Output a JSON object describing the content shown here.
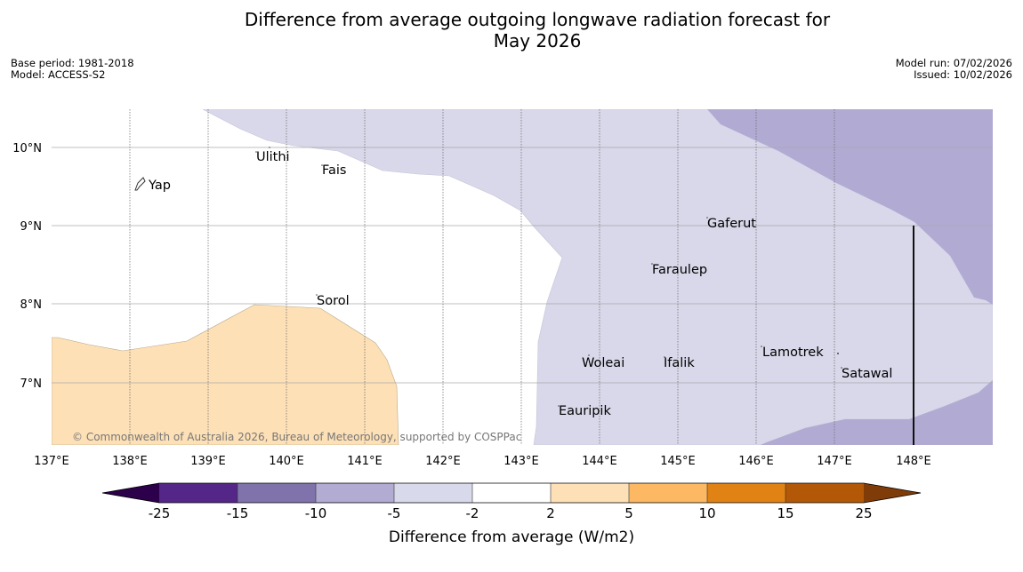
{
  "header": {
    "title_line1": "Difference from average outgoing longwave radiation forecast for",
    "title_line2": "May 2026",
    "base_period": "Base period: 1981-2018",
    "model": "Model: ACCESS-S2",
    "model_run": "Model run: 07/02/2026",
    "issued": "Issued: 10/02/2026"
  },
  "map": {
    "lat_labels": [
      "10°N",
      "9°N",
      "8°N",
      "7°N"
    ],
    "lon_labels": [
      "137°E",
      "138°E",
      "139°E",
      "140°E",
      "141°E",
      "142°E",
      "143°E",
      "144°E",
      "145°E",
      "146°E",
      "147°E",
      "148°E"
    ],
    "places": [
      "Yap",
      "Ulithi",
      "Fais",
      "Gaferut",
      "Faraulep",
      "Sorol",
      "Woleai",
      "Ifalik",
      "Lamotrek",
      "Satawal",
      "Eauripik"
    ],
    "credit": "© Commonwealth of Australia 2026, Bureau of Meteorology, supported by COSPPac",
    "colors": {
      "positive_2_5": "#fde0b6",
      "negative_5_2": "#d8d8ea",
      "negative_10_5": "#b1abd3"
    }
  },
  "colorbar": {
    "ticks": [
      "-25",
      "-15",
      "-10",
      "-5",
      "-2",
      "2",
      "5",
      "10",
      "15",
      "25"
    ],
    "colors": [
      "#2d004b",
      "#542688",
      "#8073ac",
      "#b2abd2",
      "#d8daeb",
      "#ffffff",
      "#fee0b6",
      "#fdb863",
      "#e08214",
      "#b35806",
      "#7f3b08"
    ],
    "label": "Difference from average (W/m2)"
  }
}
